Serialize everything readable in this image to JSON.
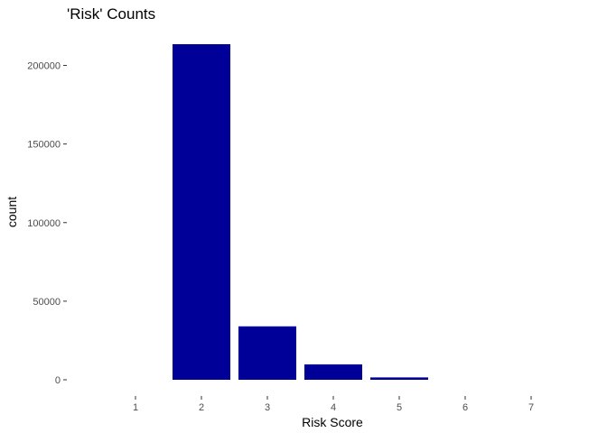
{
  "chart_data": {
    "type": "bar",
    "title": "'Risk' Counts",
    "xlabel": "Risk Score",
    "ylabel": "count",
    "categories": [
      "1",
      "2",
      "3",
      "4",
      "5",
      "6",
      "7"
    ],
    "values": [
      0,
      213500,
      34000,
      9800,
      1500,
      0,
      0
    ],
    "ylim": [
      0,
      213500
    ],
    "yticks": [
      0,
      50000,
      100000,
      150000,
      200000
    ],
    "ytick_labels": [
      "0",
      "50000",
      "100000",
      "150000",
      "200000"
    ],
    "grid": false,
    "bar_color": "#000099"
  }
}
